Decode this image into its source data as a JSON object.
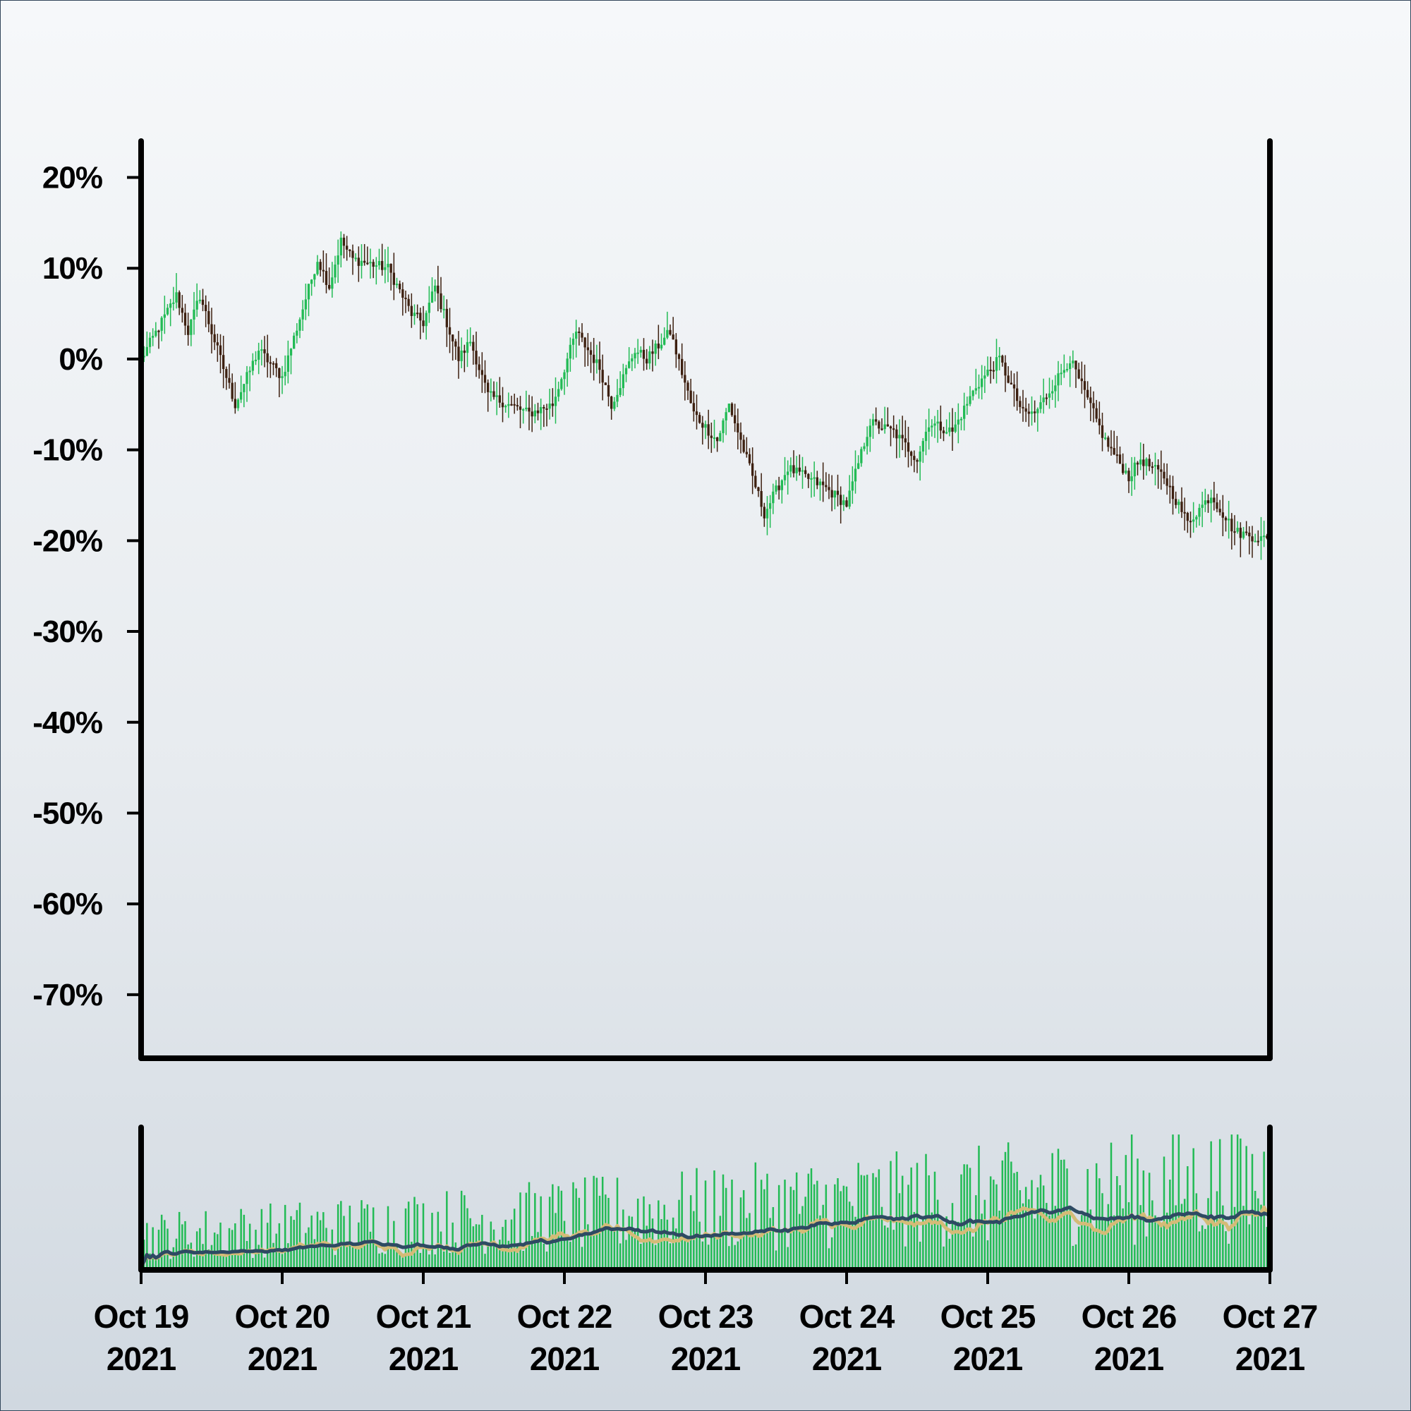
{
  "chart_data": {
    "type": "candlestick",
    "title": "",
    "xlabel": "",
    "ylabel": "",
    "y_format": "percent",
    "ylim": [
      -77,
      24
    ],
    "y_ticks": [
      20,
      10,
      0,
      -10,
      -20,
      -30,
      -40,
      -50,
      -60,
      -70
    ],
    "y_tick_labels": [
      "20%",
      "10%",
      "0%",
      "-10%",
      "-20%",
      "-30%",
      "-40%",
      "-50%",
      "-60%",
      "-70%"
    ],
    "x_range": [
      "2021-10-19",
      "2021-10-27"
    ],
    "x_ticks": [
      {
        "month_day": "Oct 19",
        "year": "2021"
      },
      {
        "month_day": "Oct 20",
        "year": "2021"
      },
      {
        "month_day": "Oct 21",
        "year": "2021"
      },
      {
        "month_day": "Oct 22",
        "year": "2021"
      },
      {
        "month_day": "Oct 23",
        "year": "2021"
      },
      {
        "month_day": "Oct 24",
        "year": "2021"
      },
      {
        "month_day": "Oct 25",
        "year": "2021"
      },
      {
        "month_day": "Oct 26",
        "year": "2021"
      },
      {
        "month_day": "Oct 27",
        "year": "2021"
      }
    ],
    "grid": false,
    "legend": "none",
    "candle_interval_hours": 0.5,
    "close_path": [
      {
        "t": "2021-10-19 00:00",
        "v": 0
      },
      {
        "t": "2021-10-19 06:00",
        "v": 7
      },
      {
        "t": "2021-10-19 08:00",
        "v": 3
      },
      {
        "t": "2021-10-19 10:00",
        "v": 7
      },
      {
        "t": "2021-10-19 16:00",
        "v": -5
      },
      {
        "t": "2021-10-19 20:00",
        "v": 1
      },
      {
        "t": "2021-10-20 00:00",
        "v": -2
      },
      {
        "t": "2021-10-20 06:00",
        "v": 11
      },
      {
        "t": "2021-10-20 08:00",
        "v": 8
      },
      {
        "t": "2021-10-20 10:00",
        "v": 13
      },
      {
        "t": "2021-10-20 12:00",
        "v": 11
      },
      {
        "t": "2021-10-20 18:00",
        "v": 10
      },
      {
        "t": "2021-10-20 22:00",
        "v": 5
      },
      {
        "t": "2021-10-21 00:00",
        "v": 4
      },
      {
        "t": "2021-10-21 02:00",
        "v": 8
      },
      {
        "t": "2021-10-21 06:00",
        "v": 0
      },
      {
        "t": "2021-10-21 08:00",
        "v": 2
      },
      {
        "t": "2021-10-21 11:00",
        "v": -4
      },
      {
        "t": "2021-10-21 18:00",
        "v": -6
      },
      {
        "t": "2021-10-21 22:00",
        "v": -5
      },
      {
        "t": "2021-10-22 02:00",
        "v": 3
      },
      {
        "t": "2021-10-22 06:00",
        "v": -1
      },
      {
        "t": "2021-10-22 08:00",
        "v": -5
      },
      {
        "t": "2021-10-22 12:00",
        "v": 1
      },
      {
        "t": "2021-10-22 14:00",
        "v": 0
      },
      {
        "t": "2021-10-22 18:00",
        "v": 3
      },
      {
        "t": "2021-10-22 22:00",
        "v": -6
      },
      {
        "t": "2021-10-23 02:00",
        "v": -9
      },
      {
        "t": "2021-10-23 04:00",
        "v": -5
      },
      {
        "t": "2021-10-23 10:00",
        "v": -17
      },
      {
        "t": "2021-10-23 14:00",
        "v": -12
      },
      {
        "t": "2021-10-23 20:00",
        "v": -14
      },
      {
        "t": "2021-10-24 00:00",
        "v": -16
      },
      {
        "t": "2021-10-24 04:00",
        "v": -7
      },
      {
        "t": "2021-10-24 08:00",
        "v": -8
      },
      {
        "t": "2021-10-24 12:00",
        "v": -11
      },
      {
        "t": "2021-10-24 14:00",
        "v": -7
      },
      {
        "t": "2021-10-24 18:00",
        "v": -8
      },
      {
        "t": "2021-10-24 22:00",
        "v": -3
      },
      {
        "t": "2021-10-25 02:00",
        "v": 0
      },
      {
        "t": "2021-10-25 06:00",
        "v": -6
      },
      {
        "t": "2021-10-25 08:00",
        "v": -6
      },
      {
        "t": "2021-10-25 12:00",
        "v": -2
      },
      {
        "t": "2021-10-25 14:00",
        "v": 0
      },
      {
        "t": "2021-10-25 20:00",
        "v": -9
      },
      {
        "t": "2021-10-26 00:00",
        "v": -13
      },
      {
        "t": "2021-10-26 02:00",
        "v": -11
      },
      {
        "t": "2021-10-26 06:00",
        "v": -13
      },
      {
        "t": "2021-10-26 10:00",
        "v": -18
      },
      {
        "t": "2021-10-26 14:00",
        "v": -15
      },
      {
        "t": "2021-10-26 18:00",
        "v": -19
      },
      {
        "t": "2021-10-27 00:00",
        "v": -20
      }
    ],
    "volume": {
      "bar_color": "#22bb55",
      "ma_fast_color": "#d4bb77",
      "ma_slow_color": "#2e4a63",
      "ma_fast_window": 12,
      "ma_slow_window": 28
    },
    "colors": {
      "up": "#22bb55",
      "down": "#3d2010",
      "axis": "#000000",
      "border": "#33475b"
    }
  }
}
